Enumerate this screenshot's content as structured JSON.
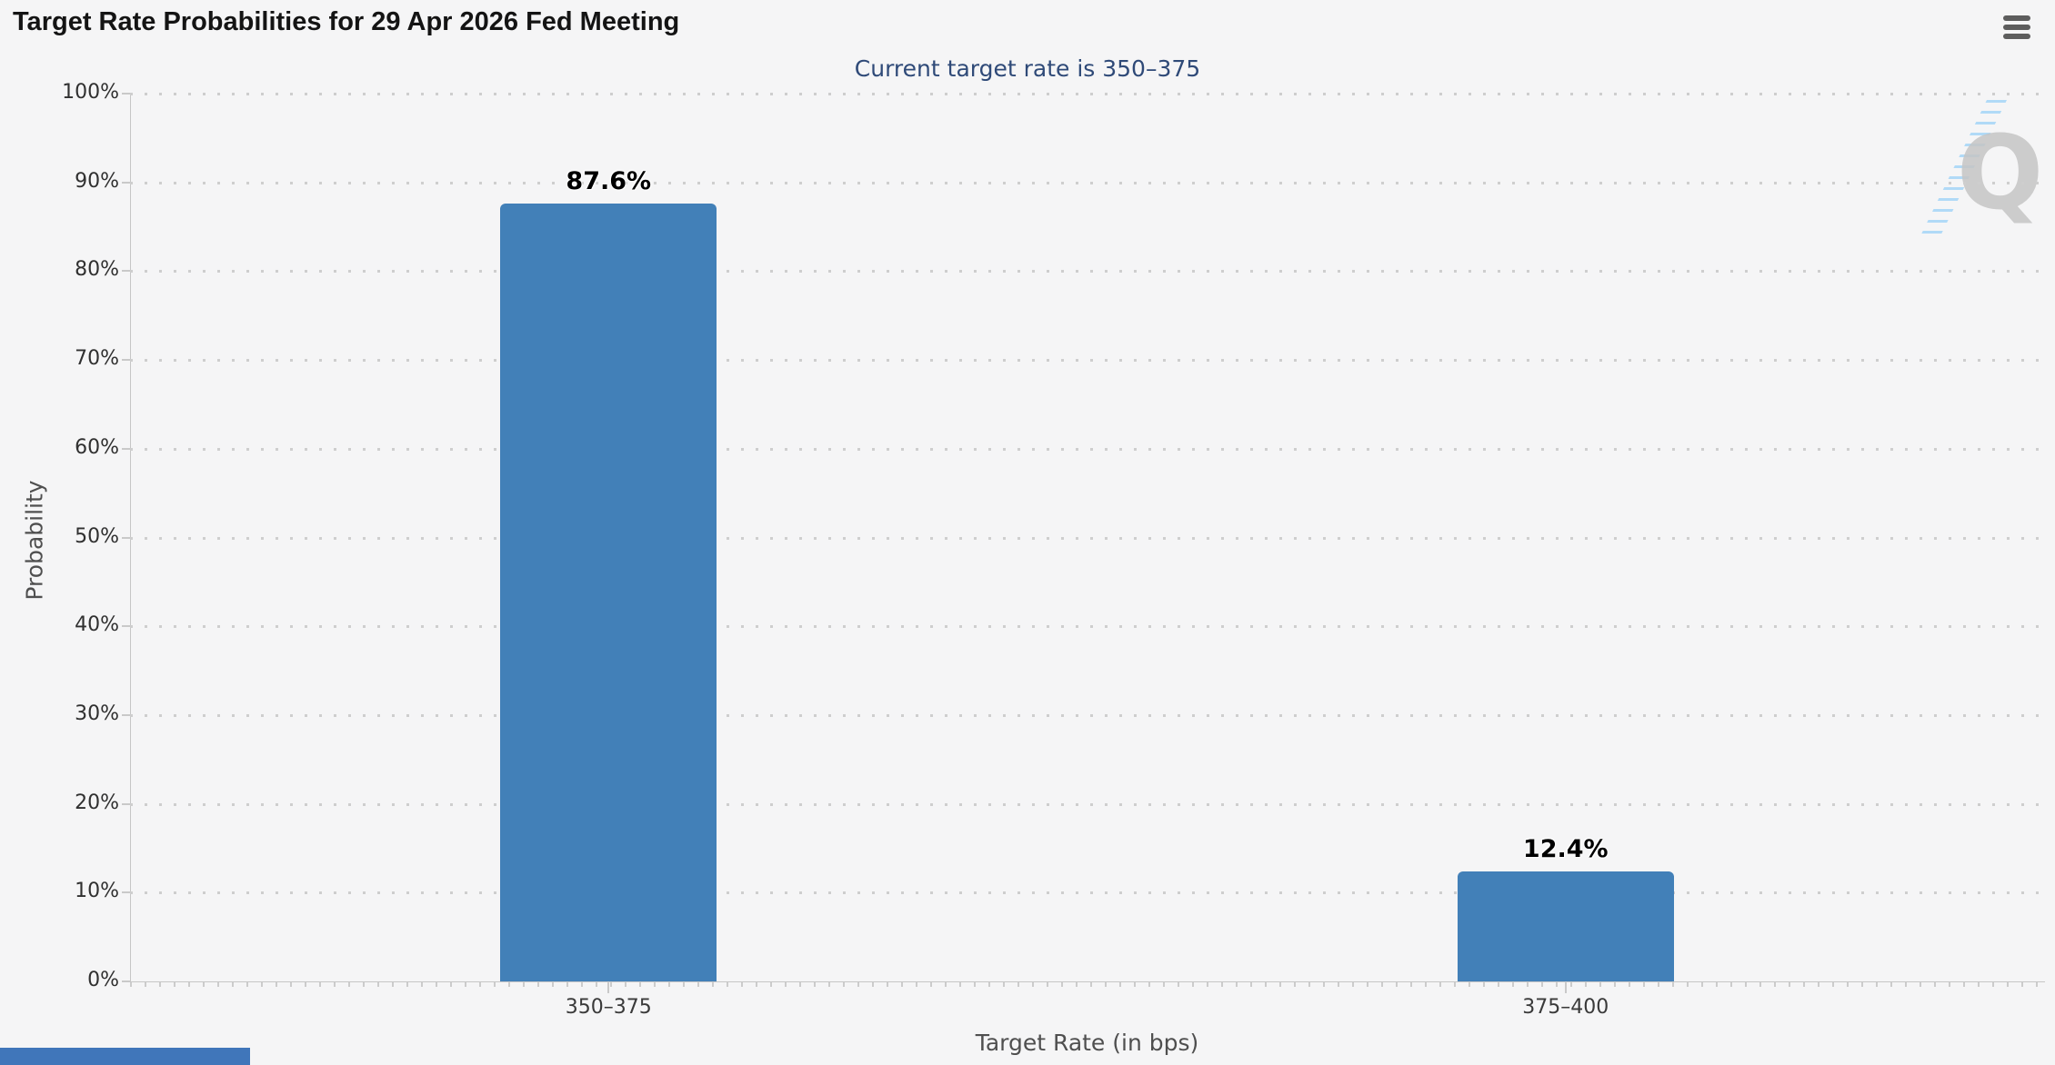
{
  "chart_data": {
    "type": "bar",
    "title": "Target Rate Probabilities for 29 Apr 2026 Fed Meeting",
    "subtitle": "Current target rate is 350–375",
    "categories": [
      "350–375",
      "375–400"
    ],
    "values": [
      87.6,
      12.4
    ],
    "value_labels": [
      "87.6%",
      "12.4%"
    ],
    "xlabel": "Target Rate (in bps)",
    "ylabel": "Probability",
    "ylim": [
      0,
      100
    ],
    "ytick_step": 10,
    "ytick_labels": [
      "100%",
      "90%",
      "80%",
      "70%",
      "60%",
      "50%",
      "40%",
      "30%",
      "20%",
      "10%",
      "0%"
    ],
    "grid": "dotted-horizontal",
    "legend_position": "none",
    "bar_color": "#4280b8"
  },
  "menu": {
    "icon": "hamburger-icon"
  },
  "watermark": {
    "letter": "Q"
  },
  "colors": {
    "background": "#f5f5f6",
    "bar": "#4280b8",
    "subtitle_text": "#2f4a78",
    "watermark_dash": "#a9d7f7",
    "bottom_banner": "#4076ba"
  }
}
